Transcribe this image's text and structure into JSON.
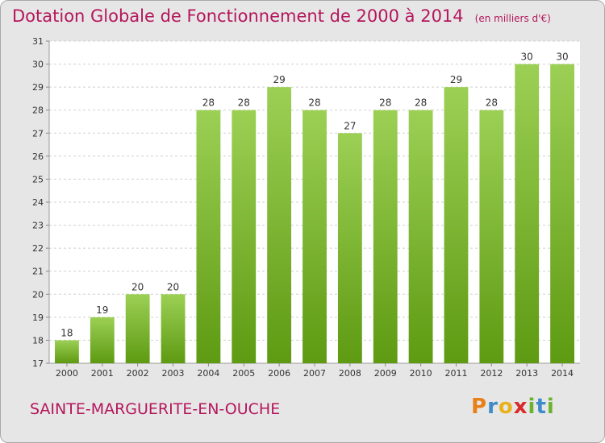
{
  "header": {
    "title": "Dotation Globale de Fonctionnement de 2000 à 2014",
    "unit": "(en milliers d'€)"
  },
  "footer": {
    "commune": "SAINTE-MARGUERITE-EN-OUCHE",
    "logo": [
      "P",
      "r",
      "o",
      "x",
      "i",
      "t",
      "i"
    ]
  },
  "colors": {
    "title": "#b4165c",
    "bar_top": "#9cd055",
    "bar_bottom": "#5e9a12",
    "plot_bg": "#ffffff",
    "frame_bg": "#e6e6e6",
    "logo": [
      "#e8801a",
      "#3d8bc9",
      "#e8b21a",
      "#d92b2b",
      "#6cb12f",
      "#3d8bc9",
      "#6cb12f"
    ]
  },
  "chart_data": {
    "type": "bar",
    "categories": [
      "2000",
      "2001",
      "2002",
      "2003",
      "2004",
      "2005",
      "2006",
      "2007",
      "2008",
      "2009",
      "2010",
      "2011",
      "2012",
      "2013",
      "2014"
    ],
    "values": [
      18,
      19,
      20,
      20,
      28,
      28,
      29,
      28,
      27,
      28,
      28,
      29,
      28,
      30,
      30
    ],
    "ylim": [
      17,
      31
    ],
    "yticks": [
      17,
      18,
      19,
      20,
      21,
      22,
      23,
      24,
      25,
      26,
      27,
      28,
      29,
      30,
      31
    ],
    "grid": true,
    "data_labels": true
  }
}
